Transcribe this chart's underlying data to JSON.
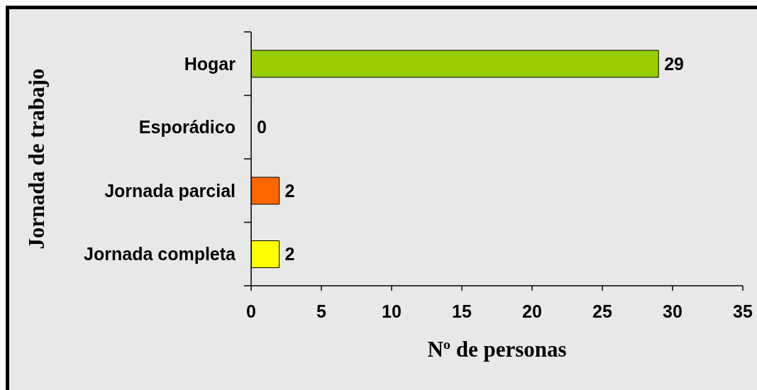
{
  "chart_data": {
    "type": "bar",
    "orientation": "horizontal",
    "xlabel": "Nº de personas",
    "ylabel": "Jornada de trabajo",
    "categories": [
      "Hogar",
      "Esporádico",
      "Jornada parcial",
      "Jornada completa"
    ],
    "values": [
      29,
      0,
      2,
      2
    ],
    "colors": [
      "#99cc00",
      null,
      "#ff6600",
      "#ffff00"
    ],
    "xlim": [
      0,
      35
    ],
    "xticks": [
      0,
      5,
      10,
      15,
      20,
      25,
      30,
      35
    ],
    "data_labels": true
  }
}
